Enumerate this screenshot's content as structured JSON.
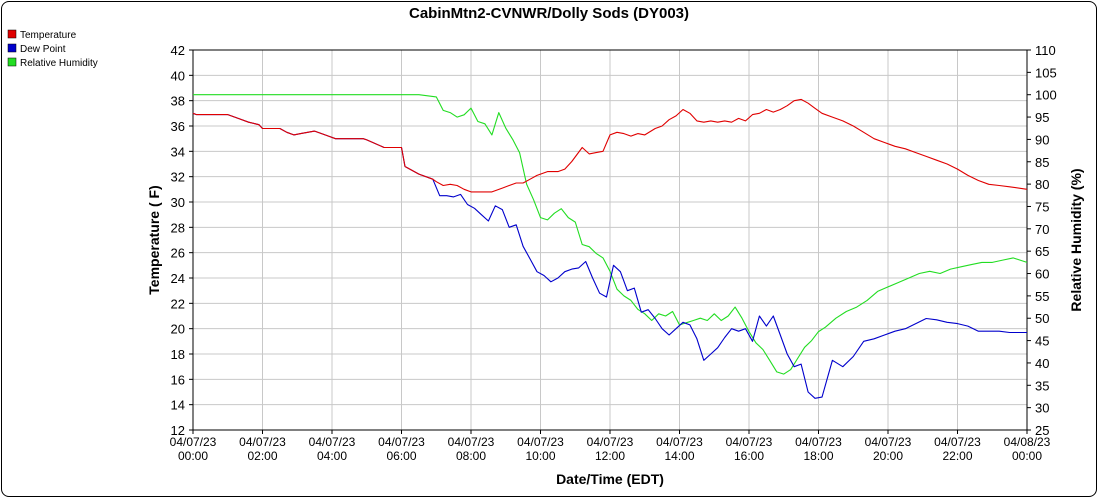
{
  "chart_data": {
    "type": "line",
    "title": "CabinMtn2-CVNWR/Dolly Sods (DY003)",
    "xlabel": "Date/Time (EDT)",
    "ylabel_left": "Temperature ( F)",
    "ylabel_right": "Relative Humidity (%)",
    "ylim_left": [
      12,
      42
    ],
    "ylim_right": [
      25,
      110
    ],
    "xlim_hours": [
      0,
      24
    ],
    "yticks_left": [
      12,
      14,
      16,
      18,
      20,
      22,
      24,
      26,
      28,
      30,
      32,
      34,
      36,
      38,
      40,
      42
    ],
    "yticks_right": [
      25,
      30,
      35,
      40,
      45,
      50,
      55,
      60,
      65,
      70,
      75,
      80,
      85,
      90,
      95,
      100,
      105,
      110
    ],
    "xticks": [
      {
        "hour": 0,
        "date": "04/07/23",
        "time": "00:00"
      },
      {
        "hour": 2,
        "date": "04/07/23",
        "time": "02:00"
      },
      {
        "hour": 4,
        "date": "04/07/23",
        "time": "04:00"
      },
      {
        "hour": 6,
        "date": "04/07/23",
        "time": "06:00"
      },
      {
        "hour": 8,
        "date": "04/07/23",
        "time": "08:00"
      },
      {
        "hour": 10,
        "date": "04/07/23",
        "time": "10:00"
      },
      {
        "hour": 12,
        "date": "04/07/23",
        "time": "12:00"
      },
      {
        "hour": 14,
        "date": "04/07/23",
        "time": "14:00"
      },
      {
        "hour": 16,
        "date": "04/07/23",
        "time": "16:00"
      },
      {
        "hour": 18,
        "date": "04/07/23",
        "time": "18:00"
      },
      {
        "hour": 20,
        "date": "04/07/23",
        "time": "20:00"
      },
      {
        "hour": 22,
        "date": "04/07/23",
        "time": "22:00"
      },
      {
        "hour": 24,
        "date": "04/08/23",
        "time": "00:00"
      }
    ],
    "grid": true,
    "legend_position": "top-left",
    "series": [
      {
        "name": "Temperature",
        "axis": "left",
        "color": "#e00000",
        "x": [
          0,
          0.1,
          0.5,
          1,
          1.3,
          1.6,
          1.9,
          2,
          2.5,
          2.7,
          2.9,
          3.1,
          3.3,
          3.5,
          3.7,
          3.9,
          4.1,
          4.5,
          4.9,
          5,
          5.5,
          6,
          6.1,
          6.5,
          6.9,
          7,
          7.2,
          7.4,
          7.6,
          7.8,
          8,
          8.3,
          8.6,
          8.9,
          9.1,
          9.3,
          9.5,
          9.7,
          9.9,
          10.2,
          10.5,
          10.7,
          10.9,
          11.2,
          11.4,
          11.6,
          11.8,
          12,
          12.2,
          12.4,
          12.6,
          12.8,
          13,
          13.3,
          13.5,
          13.7,
          13.9,
          14.1,
          14.3,
          14.5,
          14.7,
          14.9,
          15.1,
          15.3,
          15.5,
          15.7,
          15.9,
          16.1,
          16.3,
          16.5,
          16.7,
          16.9,
          17.1,
          17.3,
          17.5,
          17.7,
          17.9,
          18.1,
          18.4,
          18.7,
          19,
          19.3,
          19.6,
          19.9,
          20.2,
          20.5,
          20.8,
          21.1,
          21.4,
          21.7,
          22,
          22.3,
          22.6,
          22.9,
          23.2,
          23.5,
          24
        ],
        "y": [
          37,
          36.9,
          36.9,
          36.9,
          36.6,
          36.3,
          36.1,
          35.8,
          35.8,
          35.5,
          35.3,
          35.4,
          35.5,
          35.6,
          35.4,
          35.2,
          35,
          35,
          35,
          34.9,
          34.3,
          34.3,
          32.8,
          32.2,
          31.8,
          31.6,
          31.3,
          31.4,
          31.3,
          31,
          30.8,
          30.8,
          30.8,
          31.1,
          31.3,
          31.5,
          31.5,
          31.8,
          32.1,
          32.4,
          32.4,
          32.6,
          33.2,
          34.3,
          33.8,
          33.9,
          34,
          35.3,
          35.5,
          35.4,
          35.2,
          35.4,
          35.3,
          35.8,
          36,
          36.5,
          36.8,
          37.3,
          37,
          36.4,
          36.3,
          36.4,
          36.3,
          36.4,
          36.3,
          36.6,
          36.4,
          36.9,
          37,
          37.3,
          37.1,
          37.3,
          37.6,
          38,
          38.1,
          37.8,
          37.4,
          37,
          36.7,
          36.4,
          36,
          35.5,
          35,
          34.7,
          34.4,
          34.2,
          33.9,
          33.6,
          33.3,
          33,
          32.6,
          32.1,
          31.7,
          31.4,
          31.3,
          31.2,
          31
        ]
      },
      {
        "name": "Dew Point",
        "axis": "left",
        "color": "#0000cc",
        "x": [
          0,
          0.1,
          0.5,
          1,
          1.3,
          1.6,
          1.9,
          2,
          2.5,
          2.7,
          2.9,
          3.1,
          3.3,
          3.5,
          3.7,
          3.9,
          4.1,
          4.5,
          4.9,
          5,
          5.5,
          6,
          6.1,
          6.5,
          6.9,
          7.1,
          7.3,
          7.5,
          7.7,
          7.9,
          8.1,
          8.3,
          8.5,
          8.7,
          8.9,
          9.1,
          9.3,
          9.5,
          9.7,
          9.9,
          10.1,
          10.3,
          10.5,
          10.7,
          10.9,
          11.1,
          11.3,
          11.5,
          11.7,
          11.9,
          12.1,
          12.3,
          12.5,
          12.7,
          12.9,
          13.1,
          13.3,
          13.5,
          13.7,
          13.9,
          14.1,
          14.3,
          14.5,
          14.7,
          14.9,
          15.1,
          15.3,
          15.5,
          15.7,
          15.9,
          16.1,
          16.3,
          16.5,
          16.7,
          16.9,
          17.1,
          17.3,
          17.5,
          17.7,
          17.9,
          18.1,
          18.4,
          18.7,
          19,
          19.3,
          19.6,
          19.9,
          20.2,
          20.5,
          20.8,
          21.1,
          21.4,
          21.7,
          22,
          22.3,
          22.6,
          22.9,
          23.2,
          23.5,
          24
        ],
        "y": [
          37,
          36.9,
          36.9,
          36.9,
          36.6,
          36.3,
          36.1,
          35.8,
          35.8,
          35.5,
          35.3,
          35.4,
          35.5,
          35.6,
          35.4,
          35.2,
          35,
          35,
          35,
          34.9,
          34.3,
          34.3,
          32.8,
          32.2,
          31.8,
          30.5,
          30.5,
          30.4,
          30.6,
          29.8,
          29.5,
          29,
          28.5,
          29.7,
          29.4,
          28,
          28.2,
          26.5,
          25.5,
          24.5,
          24.2,
          23.7,
          24,
          24.5,
          24.7,
          24.8,
          25.3,
          24,
          22.8,
          22.5,
          25,
          24.5,
          23,
          23.2,
          21.3,
          21.5,
          20.8,
          20,
          19.5,
          20,
          20.5,
          20.3,
          19.2,
          17.5,
          18,
          18.5,
          19.3,
          20,
          19.8,
          20,
          19,
          21,
          20.2,
          21,
          19.5,
          18,
          17,
          17.2,
          15,
          14.5,
          14.6,
          17.5,
          17,
          17.8,
          19,
          19.2,
          19.5,
          19.8,
          20,
          20.4,
          20.8,
          20.7,
          20.5,
          20.4,
          20.2,
          19.8,
          19.8,
          19.8,
          19.7,
          19.7
        ]
      },
      {
        "name": "Relative Humidity",
        "axis": "right",
        "color": "#22dd22",
        "x": [
          0,
          1,
          2,
          3,
          4,
          5,
          6,
          6.5,
          7,
          7.2,
          7.4,
          7.6,
          7.8,
          8,
          8.2,
          8.4,
          8.6,
          8.8,
          9,
          9.2,
          9.4,
          9.6,
          9.8,
          10,
          10.2,
          10.4,
          10.6,
          10.8,
          11,
          11.2,
          11.4,
          11.6,
          11.8,
          12,
          12.2,
          12.4,
          12.6,
          12.8,
          13,
          13.2,
          13.4,
          13.6,
          13.8,
          14,
          14.2,
          14.4,
          14.6,
          14.8,
          15,
          15.2,
          15.4,
          15.6,
          15.8,
          16,
          16.2,
          16.4,
          16.6,
          16.8,
          17,
          17.2,
          17.4,
          17.6,
          17.8,
          18,
          18.2,
          18.5,
          18.8,
          19.1,
          19.4,
          19.7,
          20,
          20.3,
          20.6,
          20.9,
          21.2,
          21.5,
          21.8,
          22.1,
          22.4,
          22.7,
          23,
          23.3,
          23.6,
          24
        ],
        "y": [
          100,
          100,
          100,
          100,
          100,
          100,
          100,
          100,
          99.5,
          96.5,
          96,
          95,
          95.5,
          97,
          94,
          93.5,
          91,
          96,
          92.5,
          90,
          87,
          80,
          76.5,
          72.5,
          72,
          73.5,
          74.5,
          72.5,
          71.5,
          66.5,
          66,
          64.5,
          63.5,
          60.5,
          56.5,
          55,
          54,
          52,
          51,
          49.5,
          51,
          50.5,
          51.5,
          48.5,
          49,
          49.5,
          50,
          49.5,
          51,
          49.5,
          50.5,
          52.5,
          50,
          47,
          44.5,
          43,
          40.5,
          38,
          37.5,
          38.5,
          41,
          43.5,
          45,
          47,
          48,
          50,
          51.5,
          52.5,
          54,
          56,
          57,
          58,
          59,
          60,
          60.5,
          60,
          61,
          61.5,
          62,
          62.5,
          62.5,
          63,
          63.5,
          62.5
        ]
      }
    ]
  }
}
